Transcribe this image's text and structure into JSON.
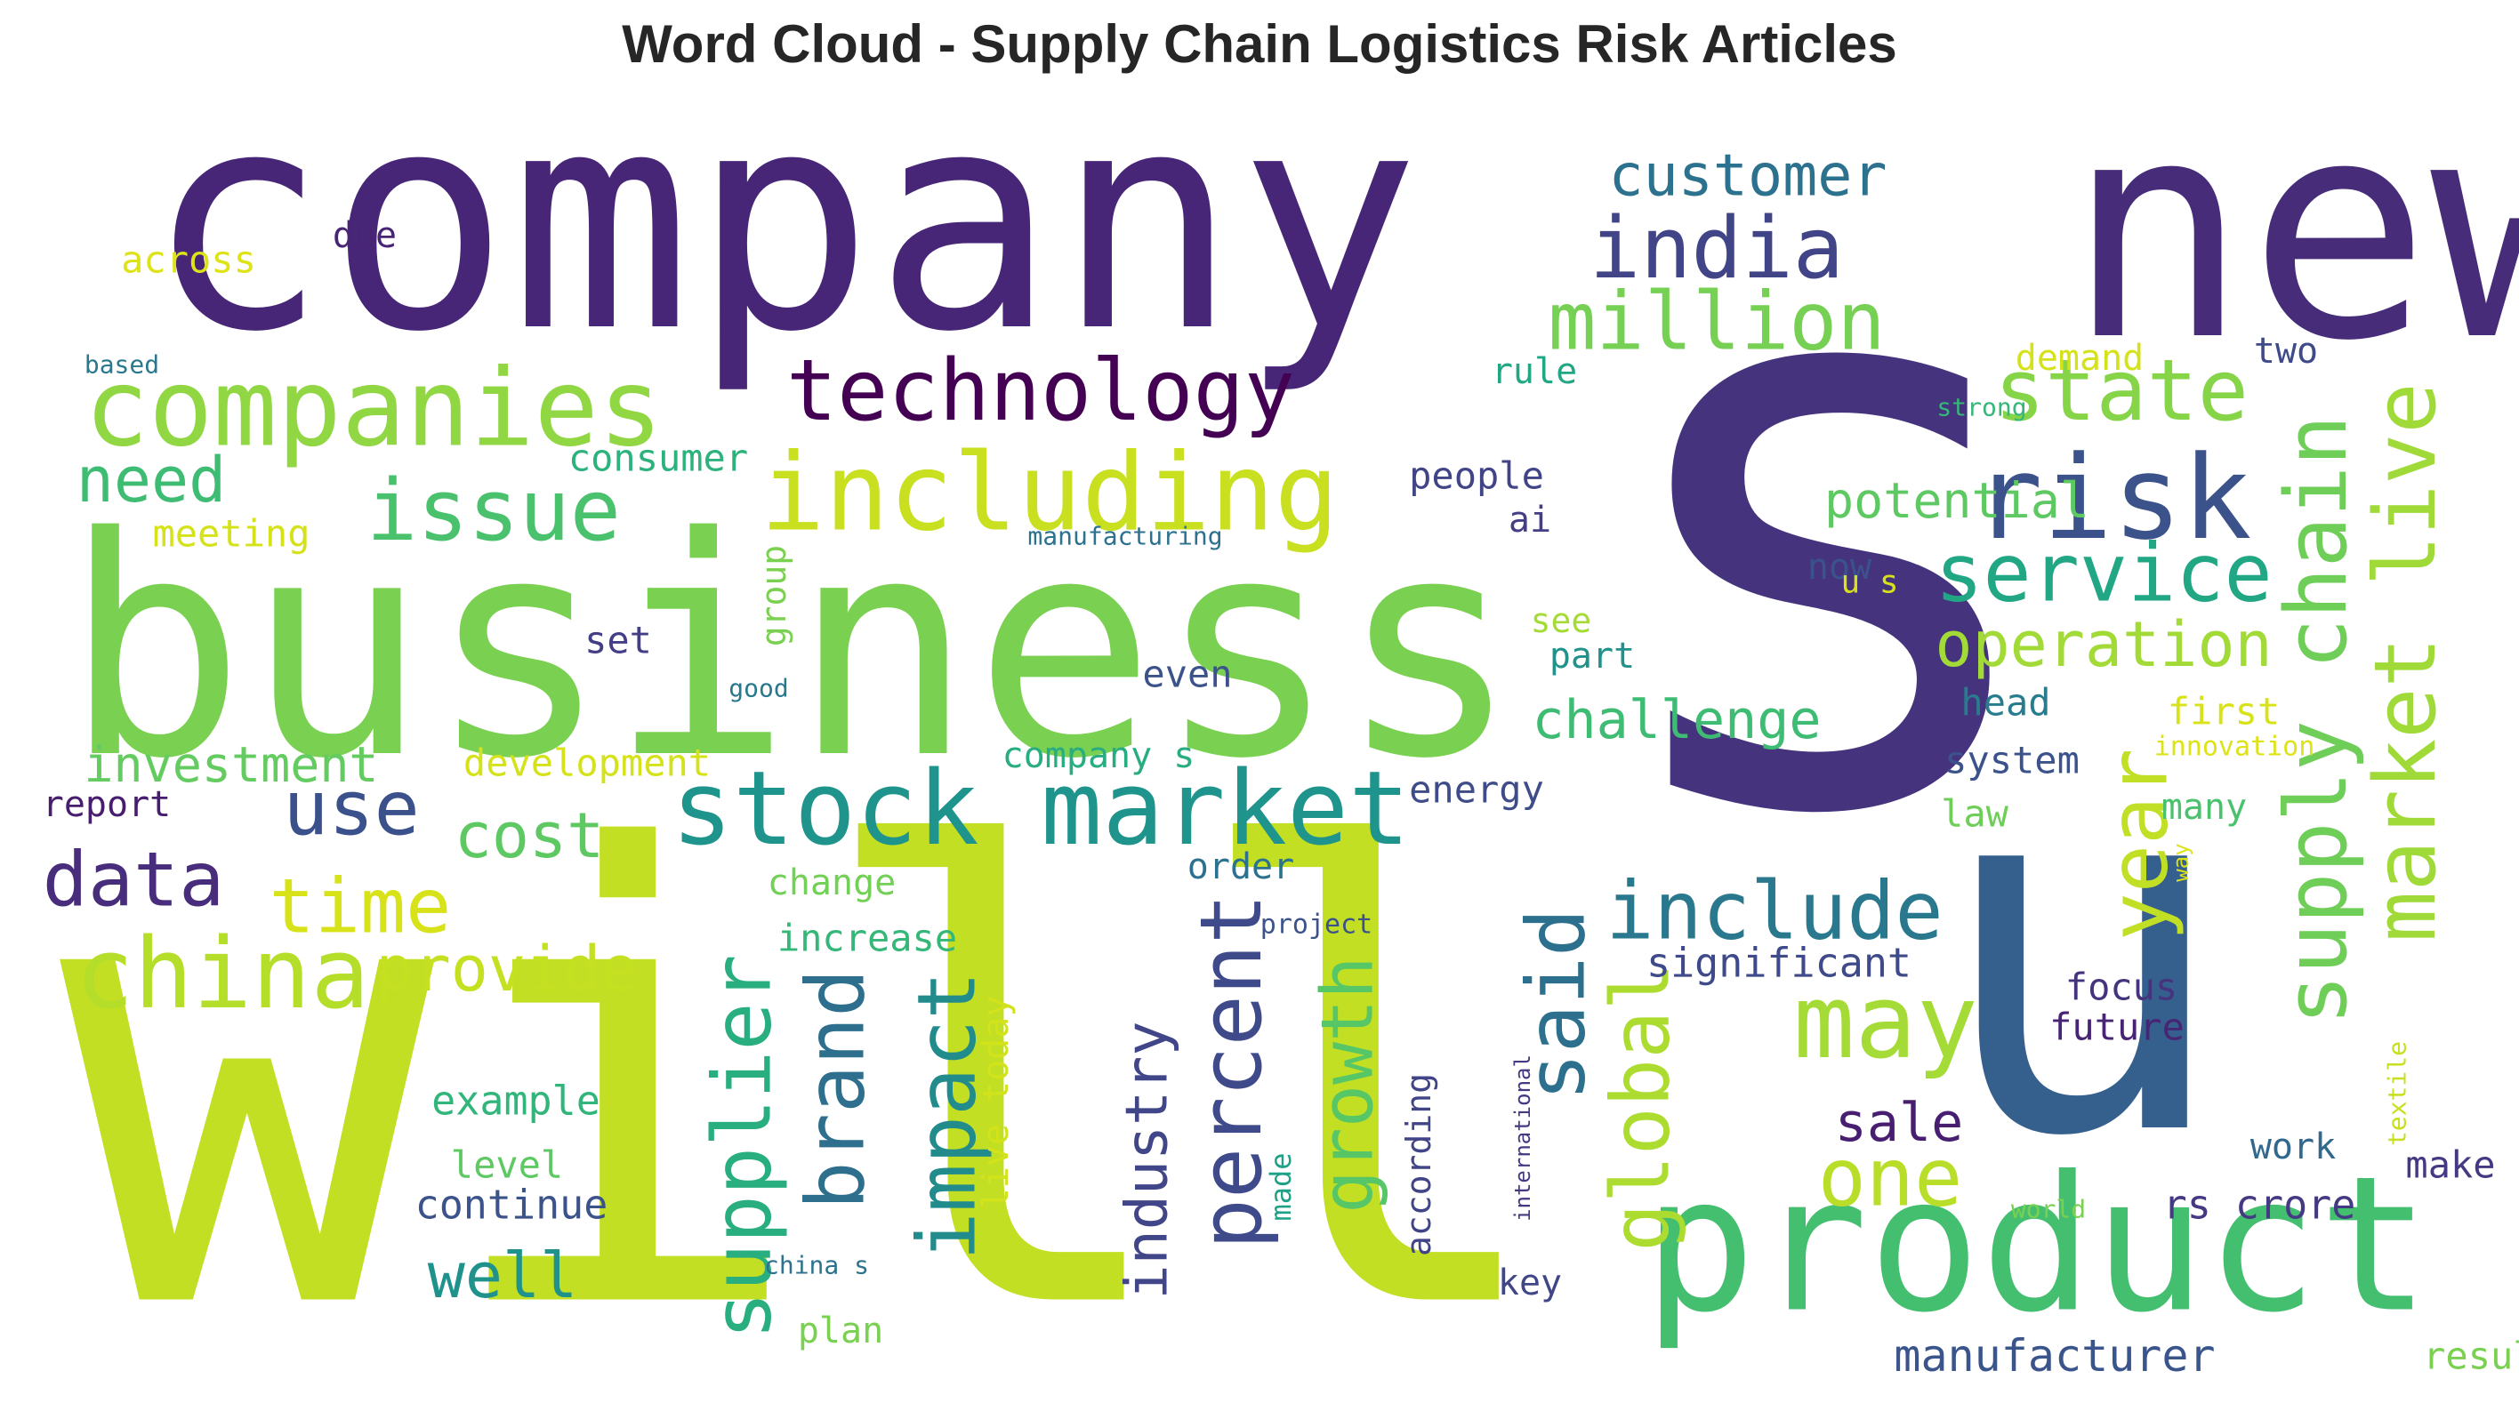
{
  "title": "Word Cloud - Supply Chain Logistics Risk Articles",
  "chart_data": {
    "type": "wordcloud",
    "title": "Word Cloud - Supply Chain Logistics Risk Articles",
    "colormap": "viridis",
    "background": "#ffffff",
    "words": [
      {
        "text": "will",
        "weight": 1.0,
        "color": "#c2df23",
        "rotate": false
      },
      {
        "text": "s",
        "weight": 0.98,
        "color": "#46337e",
        "rotate": false
      },
      {
        "text": "company",
        "weight": 0.93,
        "color": "#482677",
        "rotate": false
      },
      {
        "text": "business",
        "weight": 0.86,
        "color": "#7ad151",
        "rotate": false
      },
      {
        "text": "u",
        "weight": 0.82,
        "color": "#355f8d",
        "rotate": false
      },
      {
        "text": "new",
        "weight": 0.8,
        "color": "#472c7a",
        "rotate": false
      },
      {
        "text": "product",
        "weight": 0.55,
        "color": "#44bf70",
        "rotate": false
      },
      {
        "text": "companies",
        "weight": 0.4,
        "color": "#90d743",
        "rotate": false
      },
      {
        "text": "stock market",
        "weight": 0.39,
        "color": "#1f948c",
        "rotate": false
      },
      {
        "text": "including",
        "weight": 0.38,
        "color": "#c8e020",
        "rotate": false
      },
      {
        "text": "risk",
        "weight": 0.38,
        "color": "#3b528b",
        "rotate": false
      },
      {
        "text": "china",
        "weight": 0.35,
        "color": "#b5de2b",
        "rotate": false
      },
      {
        "text": "may",
        "weight": 0.35,
        "color": "#a5db36",
        "rotate": false
      },
      {
        "text": "market live",
        "weight": 0.33,
        "color": "#a0da39",
        "rotate": true
      },
      {
        "text": "technology",
        "weight": 0.32,
        "color": "#440154",
        "rotate": false
      },
      {
        "text": "supply chain",
        "weight": 0.31,
        "color": "#6ece58",
        "rotate": true
      },
      {
        "text": "issue",
        "weight": 0.3,
        "color": "#4ac16d",
        "rotate": false
      },
      {
        "text": "india",
        "weight": 0.3,
        "color": "#414487",
        "rotate": false
      },
      {
        "text": "state",
        "weight": 0.3,
        "color": "#86d549",
        "rotate": false
      },
      {
        "text": "service",
        "weight": 0.3,
        "color": "#22a785",
        "rotate": false
      },
      {
        "text": "million",
        "weight": 0.29,
        "color": "#75d054",
        "rotate": false
      },
      {
        "text": "include",
        "weight": 0.29,
        "color": "#2a788e",
        "rotate": false
      },
      {
        "text": "supplier",
        "weight": 0.29,
        "color": "#29af7f",
        "rotate": true
      },
      {
        "text": "percent",
        "weight": 0.29,
        "color": "#3e4a89",
        "rotate": true
      },
      {
        "text": "year",
        "weight": 0.28,
        "color": "#c0df25",
        "rotate": true
      },
      {
        "text": "time",
        "weight": 0.28,
        "color": "#d8e219",
        "rotate": false
      },
      {
        "text": "use",
        "weight": 0.28,
        "color": "#3b518b",
        "rotate": false
      },
      {
        "text": "data",
        "weight": 0.27,
        "color": "#472d7b",
        "rotate": false
      },
      {
        "text": "impact",
        "weight": 0.27,
        "color": "#228c8d",
        "rotate": true
      },
      {
        "text": "brand",
        "weight": 0.26,
        "color": "#2e6f8e",
        "rotate": true
      },
      {
        "text": "one",
        "weight": 0.26,
        "color": "#b8de29",
        "rotate": false
      },
      {
        "text": "said",
        "weight": 0.25,
        "color": "#2d708e",
        "rotate": true
      },
      {
        "text": "global",
        "weight": 0.25,
        "color": "#addc30",
        "rotate": true
      },
      {
        "text": "growth",
        "weight": 0.24,
        "color": "#56c667",
        "rotate": true
      },
      {
        "text": "operation",
        "weight": 0.23,
        "color": "#a2da37",
        "rotate": false
      },
      {
        "text": "provide",
        "weight": 0.23,
        "color": "#c5e021",
        "rotate": false
      },
      {
        "text": "customer",
        "weight": 0.21,
        "color": "#2c728e",
        "rotate": false
      },
      {
        "text": "industry",
        "weight": 0.21,
        "color": "#404688",
        "rotate": true
      },
      {
        "text": "challenge",
        "weight": 0.2,
        "color": "#3fbc73",
        "rotate": false
      },
      {
        "text": "need",
        "weight": 0.2,
        "color": "#3fbc73",
        "rotate": false
      },
      {
        "text": "cost",
        "weight": 0.2,
        "color": "#5ec962",
        "rotate": false
      },
      {
        "text": "well",
        "weight": 0.2,
        "color": "#20928c",
        "rotate": false
      },
      {
        "text": "sale",
        "weight": 0.19,
        "color": "#481f70",
        "rotate": false
      },
      {
        "text": "investment",
        "weight": 0.18,
        "color": "#63cb5f",
        "rotate": false
      },
      {
        "text": "potential",
        "weight": 0.17,
        "color": "#5ec962",
        "rotate": false
      },
      {
        "text": "manufacturer",
        "weight": 0.15,
        "color": "#3a548c",
        "rotate": false
      },
      {
        "text": "significant",
        "weight": 0.13,
        "color": "#3e4a89",
        "rotate": false
      },
      {
        "text": "example",
        "weight": 0.13,
        "color": "#31b57b",
        "rotate": false
      },
      {
        "text": "continue",
        "weight": 0.13,
        "color": "#3b528b",
        "rotate": false
      },
      {
        "text": "development",
        "weight": 0.13,
        "color": "#d5e21a",
        "rotate": false
      },
      {
        "text": "live today",
        "weight": 0.13,
        "color": "#d2e21b",
        "rotate": true
      },
      {
        "text": "rs crore",
        "weight": 0.13,
        "color": "#443983",
        "rotate": false
      },
      {
        "text": "meeting",
        "weight": 0.13,
        "color": "#d5e21a",
        "rotate": false
      },
      {
        "text": "consumer",
        "weight": 0.12,
        "color": "#2db27d",
        "rotate": false
      },
      {
        "text": "people",
        "weight": 0.12,
        "color": "#414487",
        "rotate": false
      },
      {
        "text": "across",
        "weight": 0.12,
        "color": "#dde318",
        "rotate": false
      },
      {
        "text": "system",
        "weight": 0.12,
        "color": "#3b528b",
        "rotate": false
      },
      {
        "text": "company s",
        "weight": 0.12,
        "color": "#27ad81",
        "rotate": false
      },
      {
        "text": "increase",
        "weight": 0.12,
        "color": "#35b779",
        "rotate": false
      },
      {
        "text": "energy",
        "weight": 0.12,
        "color": "#3e4c8a",
        "rotate": false
      },
      {
        "text": "level",
        "weight": 0.12,
        "color": "#5ec962",
        "rotate": false
      },
      {
        "text": "focus",
        "weight": 0.12,
        "color": "#46337e",
        "rotate": false
      },
      {
        "text": "future",
        "weight": 0.12,
        "color": "#482475",
        "rotate": false
      },
      {
        "text": "according",
        "weight": 0.11,
        "color": "#414487",
        "rotate": true
      },
      {
        "text": "even",
        "weight": 0.11,
        "color": "#3b528b",
        "rotate": false
      },
      {
        "text": "report",
        "weight": 0.11,
        "color": "#481c6e",
        "rotate": false
      },
      {
        "text": "head",
        "weight": 0.11,
        "color": "#287c8e",
        "rotate": false
      },
      {
        "text": "first",
        "weight": 0.11,
        "color": "#d8e219",
        "rotate": false
      },
      {
        "text": "group",
        "weight": 0.1,
        "color": "#7ad151",
        "rotate": true
      },
      {
        "text": "change",
        "weight": 0.1,
        "color": "#73d056",
        "rotate": false
      },
      {
        "text": "order",
        "weight": 0.1,
        "color": "#2c728e",
        "rotate": false
      },
      {
        "text": "work",
        "weight": 0.1,
        "color": "#31688e",
        "rotate": false
      },
      {
        "text": "make",
        "weight": 0.1,
        "color": "#443983",
        "rotate": false
      },
      {
        "text": "now",
        "weight": 0.1,
        "color": "#3b528b",
        "rotate": false
      },
      {
        "text": "part",
        "weight": 0.1,
        "color": "#21918c",
        "rotate": false
      },
      {
        "text": "set",
        "weight": 0.1,
        "color": "#433e85",
        "rotate": false
      },
      {
        "text": "due",
        "weight": 0.1,
        "color": "#482475",
        "rotate": false
      },
      {
        "text": "result",
        "weight": 0.1,
        "color": "#7ad151",
        "rotate": false
      },
      {
        "text": "plan",
        "weight": 0.1,
        "color": "#7ad151",
        "rotate": false
      },
      {
        "text": "key",
        "weight": 0.1,
        "color": "#404688",
        "rotate": false
      },
      {
        "text": "demand",
        "weight": 0.1,
        "color": "#d5e21a",
        "rotate": false
      },
      {
        "text": "two",
        "weight": 0.1,
        "color": "#3e4a89",
        "rotate": false
      },
      {
        "text": "law",
        "weight": 0.1,
        "color": "#6ece58",
        "rotate": false
      },
      {
        "text": "many",
        "weight": 0.1,
        "color": "#4ac16d",
        "rotate": false
      },
      {
        "text": "rule",
        "weight": 0.1,
        "color": "#22a785",
        "rotate": false
      },
      {
        "text": "ai",
        "weight": 0.1,
        "color": "#433e85",
        "rotate": false
      },
      {
        "text": "see",
        "weight": 0.09,
        "color": "#a5db36",
        "rotate": false
      },
      {
        "text": "made",
        "weight": 0.09,
        "color": "#1fa187",
        "rotate": true
      },
      {
        "text": "u s",
        "weight": 0.09,
        "color": "#d8e219",
        "rotate": false
      },
      {
        "text": "manufacturing",
        "weight": 0.08,
        "color": "#2c728e",
        "rotate": false
      },
      {
        "text": "project",
        "weight": 0.08,
        "color": "#3b528b",
        "rotate": false
      },
      {
        "text": "innovation",
        "weight": 0.08,
        "color": "#dde318",
        "rotate": false
      },
      {
        "text": "based",
        "weight": 0.08,
        "color": "#2a788e",
        "rotate": false
      },
      {
        "text": "good",
        "weight": 0.08,
        "color": "#2a788e",
        "rotate": false
      },
      {
        "text": "strong",
        "weight": 0.08,
        "color": "#35b779",
        "rotate": false
      },
      {
        "text": "china s",
        "weight": 0.08,
        "color": "#2c728e",
        "rotate": false
      },
      {
        "text": "world",
        "weight": 0.08,
        "color": "#7ad151",
        "rotate": false
      },
      {
        "text": "international",
        "weight": 0.07,
        "color": "#443983",
        "rotate": true
      },
      {
        "text": "textile",
        "weight": 0.07,
        "color": "#c8e020",
        "rotate": true
      },
      {
        "text": "way",
        "weight": 0.06,
        "color": "#dde318",
        "rotate": true
      }
    ]
  }
}
